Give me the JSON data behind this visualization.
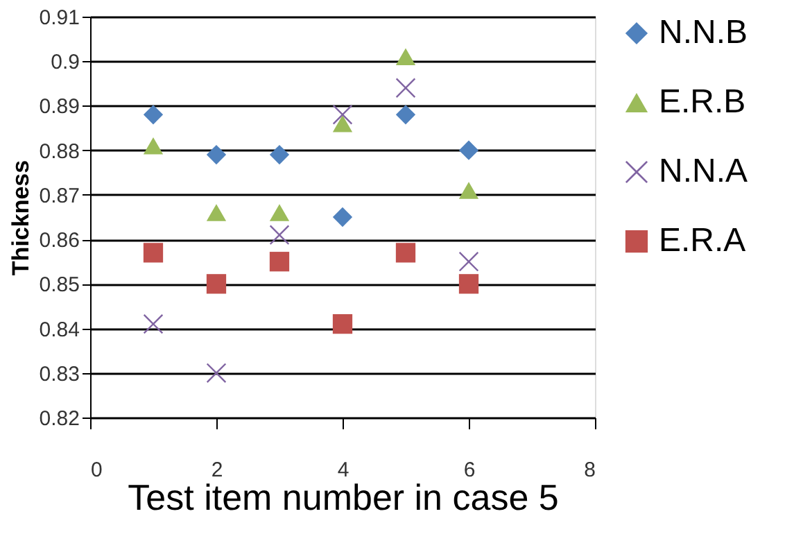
{
  "chart_data": {
    "type": "scatter",
    "xlabel": "Test item number in case 5",
    "ylabel": "Thickness",
    "x": [
      1,
      2,
      3,
      4,
      5,
      6
    ],
    "xlim": [
      0,
      8
    ],
    "xticks": [
      0,
      2,
      4,
      6,
      8
    ],
    "ylim": [
      0.82,
      0.91
    ],
    "yticks": [
      0.82,
      0.83,
      0.84,
      0.85,
      0.86,
      0.87,
      0.88,
      0.89,
      0.9,
      0.91
    ],
    "grid": "y",
    "legend": "right",
    "series": [
      {
        "name": "N.N.B",
        "color": "#4f81bd",
        "marker": "diamond",
        "values": [
          0.888,
          0.879,
          0.879,
          0.865,
          0.888,
          0.88
        ]
      },
      {
        "name": "E.R.B",
        "color": "#9bbb59",
        "marker": "triangle",
        "values": [
          0.881,
          0.866,
          0.866,
          0.886,
          0.901,
          0.871
        ]
      },
      {
        "name": "N.N.A",
        "color": "#8064a2",
        "marker": "cross",
        "values": [
          0.841,
          0.83,
          0.861,
          0.888,
          0.894,
          0.855
        ]
      },
      {
        "name": "E.R.A",
        "color": "#c0504d",
        "marker": "square",
        "values": [
          0.857,
          0.85,
          0.855,
          0.841,
          0.857,
          0.85
        ]
      }
    ]
  }
}
